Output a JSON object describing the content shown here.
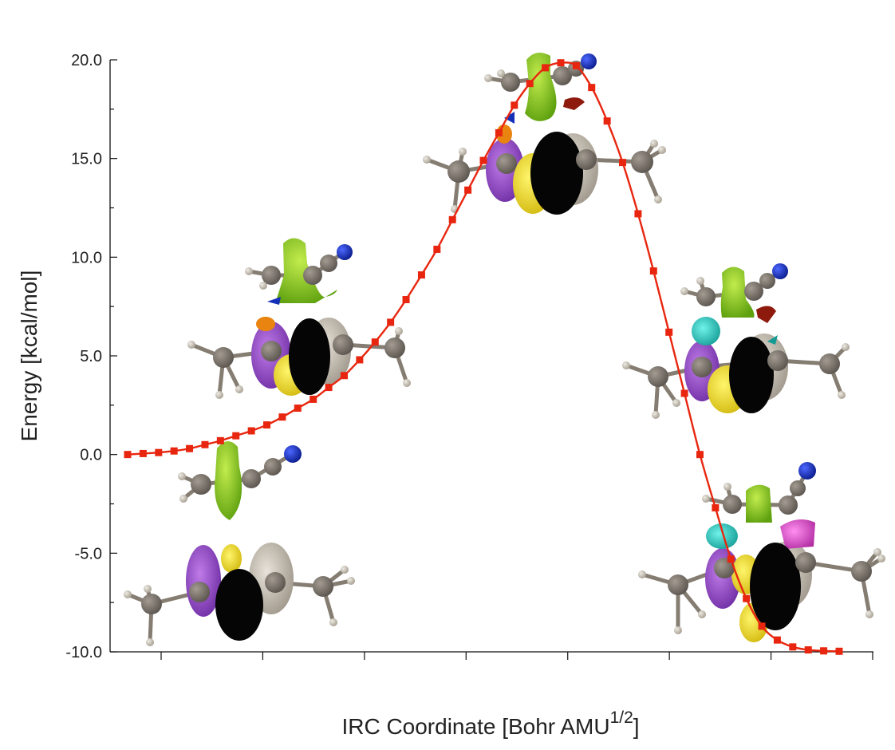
{
  "chart_data": {
    "type": "line",
    "title": "",
    "ylabel": "Energy [kcal/mol]",
    "xlabel": "IRC Coordinate [Bohr AMU",
    "xlabel_sup": "1/2",
    "xlabel_close": "]",
    "ylim": [
      -10,
      20
    ],
    "y_ticks": [
      "20.0",
      "15.0",
      "10.0",
      "5.0",
      "0.0",
      "-5.0",
      "-10.0"
    ],
    "y_tick_values": [
      20,
      15,
      10,
      5,
      0,
      -5,
      -10
    ],
    "x_range": [
      0,
      46
    ],
    "x_tick_count": 8,
    "x_tick_labels_shown": false,
    "grid": false,
    "series": [
      {
        "color": "#e8260f",
        "marker": "square",
        "x": [
          0,
          1,
          2,
          3,
          4,
          5,
          6,
          7,
          8,
          9,
          10,
          11,
          12,
          13,
          14,
          15,
          16,
          17,
          18,
          19,
          20,
          21,
          22,
          23,
          24,
          25,
          26,
          27,
          28,
          29,
          30,
          31,
          32,
          33,
          34,
          35,
          36,
          37,
          38,
          39,
          40,
          41,
          42,
          43,
          44,
          45,
          46
        ],
        "y": [
          0.0,
          0.05,
          0.1,
          0.18,
          0.3,
          0.5,
          0.7,
          0.95,
          1.2,
          1.5,
          1.9,
          2.35,
          2.8,
          3.4,
          4.0,
          4.8,
          5.7,
          6.7,
          7.85,
          9.1,
          10.4,
          11.9,
          13.4,
          14.9,
          16.3,
          17.7,
          18.8,
          19.6,
          19.85,
          19.7,
          18.6,
          16.9,
          14.8,
          12.2,
          9.3,
          6.2,
          3.1,
          0.0,
          -2.7,
          -5.3,
          -7.3,
          -8.7,
          -9.4,
          -9.75,
          -9.9,
          -9.95,
          -9.97
        ]
      }
    ],
    "annotations": [
      "molecular-orbital-rendering-reactant",
      "molecular-orbital-rendering-early",
      "molecular-orbital-rendering-transition-state",
      "molecular-orbital-rendering-late",
      "molecular-orbital-rendering-product"
    ],
    "colors": {
      "line": "#e8260f",
      "orbital_green": "#86c81a",
      "orbital_purple": "#9146c4",
      "orbital_yellow": "#f2dc17",
      "orbital_black": "#050505",
      "orbital_tan": "#c9c2b6",
      "orbital_cyan": "#23c9c0",
      "orbital_magenta": "#e34bd1",
      "orbital_orange": "#e8840f",
      "orbital_darkred": "#8d1a0c",
      "atom_carbon": "#6e675f",
      "atom_hydrogen": "#cfc6b6",
      "atom_nitrogen": "#1530b8"
    }
  }
}
